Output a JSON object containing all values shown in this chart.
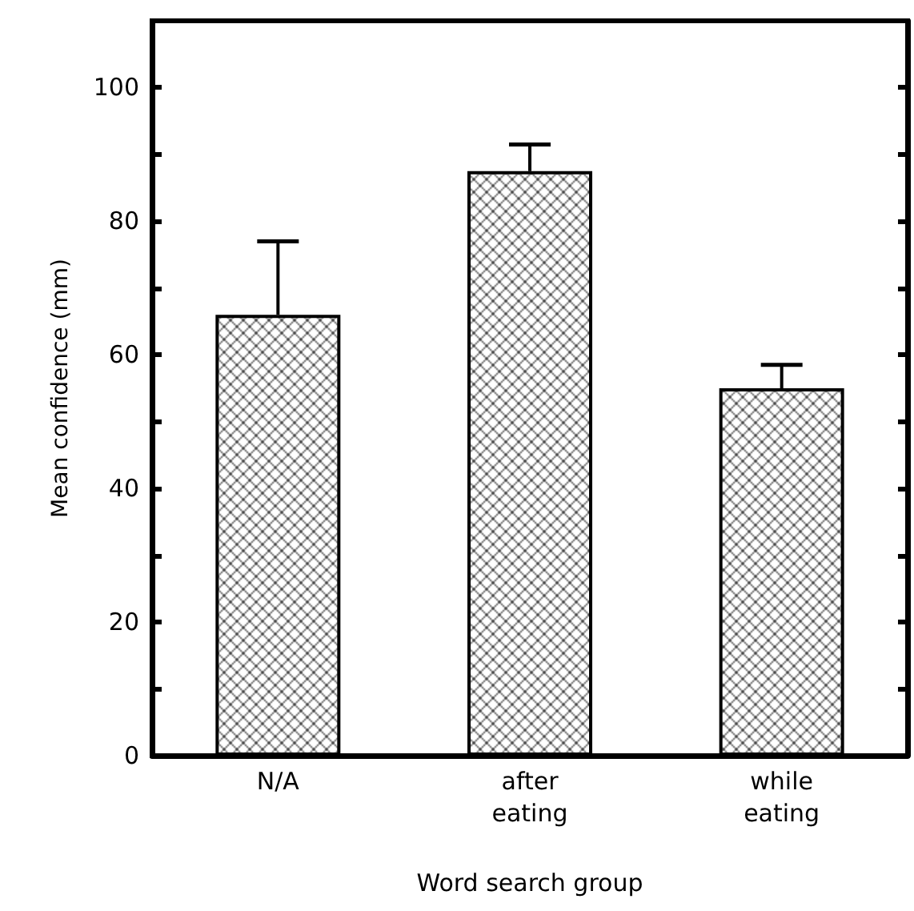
{
  "chart_data": {
    "type": "bar",
    "xlabel": "Word search group",
    "ylabel": "Mean confidence (mm)",
    "categories": [
      "N/A",
      "after eating",
      "while eating"
    ],
    "values": [
      66,
      87.5,
      55
    ],
    "errors": [
      [
        66,
        77
      ],
      [
        87.5,
        91.5
      ],
      [
        55,
        58.5
      ]
    ],
    "color": "#000000",
    "ylim": [
      0,
      110
    ],
    "yticks": [
      0,
      {
        "value": 10,
        "label": null
      },
      20,
      {
        "value": 30,
        "label": null
      },
      40,
      {
        "value": 50,
        "label": null
      },
      60,
      {
        "value": 70,
        "label": null
      },
      80,
      {
        "value": 90,
        "label": null
      },
      100
    ],
    "grid": false
  }
}
